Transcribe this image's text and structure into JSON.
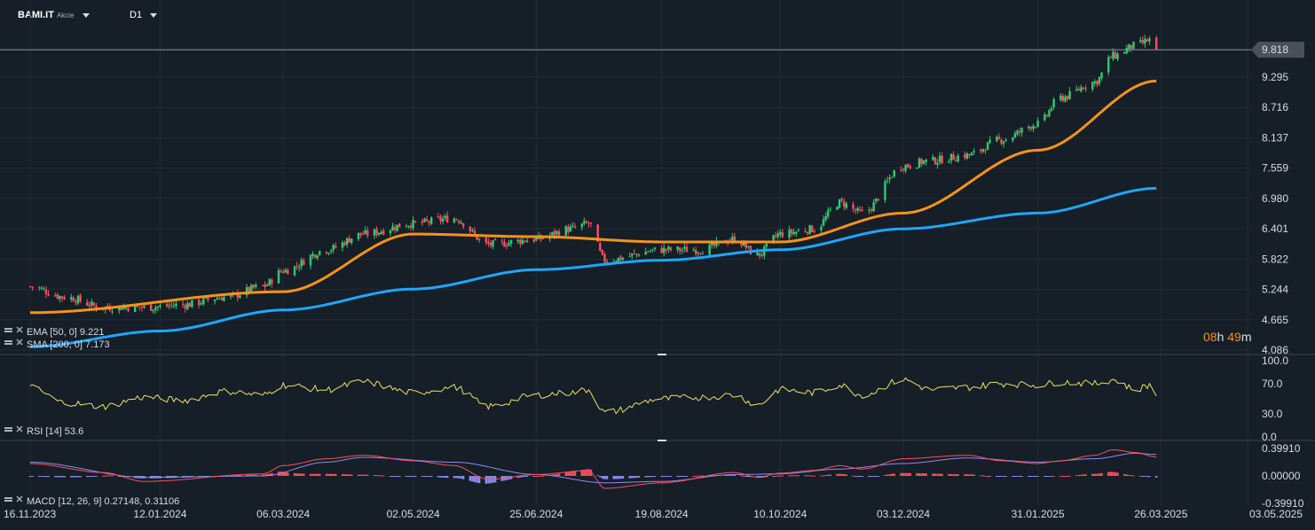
{
  "header": {
    "symbol": "BAMI.IT",
    "type": "Akcie",
    "timeframe": "D1"
  },
  "countdown": {
    "hours": "08",
    "h": "h",
    "minutes": "49",
    "m": "m"
  },
  "indicators": {
    "ema": "EMA [50, 0] 9.221",
    "sma": "SMA [200, 0] 7.173",
    "rsi": "RSI [14] 53.6",
    "macd": "MACD [12, 26, 9] 0.27148, 0.31106"
  },
  "chart_data": [
    {
      "type": "candlestick",
      "name": "price",
      "price_axis_labels": [
        "9.295",
        "8.716",
        "8.137",
        "7.559",
        "6.980",
        "6.401",
        "5.822",
        "5.244",
        "4.665",
        "4.086"
      ],
      "last_price": "9.818",
      "colors": {
        "up": "#2ecc71",
        "down": "#ff4d5e",
        "ema": "#f7931a",
        "sma": "#1ea7ff",
        "price_tag": "#4a5058"
      },
      "x_labels": [
        "16.11.2023",
        "12.01.2024",
        "06.03.2024",
        "02.05.2024",
        "25.06.2024",
        "19.08.2024",
        "10.10.2024",
        "03.12.2024",
        "31.01.2025",
        "26.03.2025",
        "03.05.2025"
      ],
      "close_anchors": [
        [
          "16.11.2023",
          5.3
        ],
        [
          "01.12.2023",
          5.1
        ],
        [
          "18.12.2023",
          4.9
        ],
        [
          "05.01.2024",
          4.9
        ],
        [
          "22.01.2024",
          4.95
        ],
        [
          "10.02.2024",
          5.1
        ],
        [
          "26.02.2024",
          5.3
        ],
        [
          "06.03.2024",
          5.6
        ],
        [
          "25.03.2024",
          6.0
        ],
        [
          "10.04.2024",
          6.3
        ],
        [
          "02.05.2024",
          6.5
        ],
        [
          "20.05.2024",
          6.6
        ],
        [
          "04.06.2024",
          6.1
        ],
        [
          "25.06.2024",
          6.2
        ],
        [
          "10.07.2024",
          6.4
        ],
        [
          "18.07.2024",
          6.5
        ],
        [
          "25.07.2024",
          5.8
        ],
        [
          "19.08.2024",
          6.0
        ],
        [
          "05.09.2024",
          6.0
        ],
        [
          "20.09.2024",
          6.2
        ],
        [
          "30.09.2024",
          5.9
        ],
        [
          "10.10.2024",
          6.3
        ],
        [
          "25.10.2024",
          6.4
        ],
        [
          "05.11.2024",
          6.9
        ],
        [
          "15.11.2024",
          6.7
        ],
        [
          "03.12.2024",
          7.6
        ],
        [
          "15.12.2024",
          7.7
        ],
        [
          "31.12.2024",
          7.8
        ],
        [
          "15.01.2025",
          8.1
        ],
        [
          "31.01.2025",
          8.4
        ],
        [
          "10.02.2025",
          8.9
        ],
        [
          "25.02.2025",
          9.2
        ],
        [
          "05.03.2025",
          9.7
        ],
        [
          "15.03.2025",
          9.9
        ],
        [
          "21.03.2025",
          10.0
        ],
        [
          "24.03.2025",
          9.818
        ]
      ],
      "ema_anchors": [
        [
          "16.11.2023",
          4.8
        ],
        [
          "06.03.2024",
          5.2
        ],
        [
          "02.05.2024",
          6.3
        ],
        [
          "25.06.2024",
          6.25
        ],
        [
          "19.08.2024",
          6.15
        ],
        [
          "10.10.2024",
          6.15
        ],
        [
          "03.12.2024",
          6.7
        ],
        [
          "31.01.2025",
          7.9
        ],
        [
          "24.03.2025",
          9.221
        ]
      ],
      "sma_anchors": [
        [
          "16.11.2023",
          4.15
        ],
        [
          "12.01.2024",
          4.45
        ],
        [
          "06.03.2024",
          4.85
        ],
        [
          "02.05.2024",
          5.25
        ],
        [
          "25.06.2024",
          5.62
        ],
        [
          "19.08.2024",
          5.8
        ],
        [
          "10.10.2024",
          6.0
        ],
        [
          "03.12.2024",
          6.4
        ],
        [
          "31.01.2025",
          6.7
        ],
        [
          "24.03.2025",
          7.173
        ]
      ]
    },
    {
      "type": "line",
      "name": "RSI",
      "axis_labels": [
        "100.0",
        "70.0",
        "30.0",
        "0.0"
      ],
      "ylim": [
        0,
        100
      ],
      "color": "#e8e26c",
      "anchors": [
        [
          "16.11.2023",
          65
        ],
        [
          "01.12.2023",
          45
        ],
        [
          "18.12.2023",
          40
        ],
        [
          "05.01.2024",
          52
        ],
        [
          "22.01.2024",
          48
        ],
        [
          "10.02.2024",
          60
        ],
        [
          "26.02.2024",
          55
        ],
        [
          "06.03.2024",
          68
        ],
        [
          "25.03.2024",
          62
        ],
        [
          "10.04.2024",
          72
        ],
        [
          "02.05.2024",
          58
        ],
        [
          "20.05.2024",
          65
        ],
        [
          "04.06.2024",
          40
        ],
        [
          "25.06.2024",
          55
        ],
        [
          "10.07.2024",
          58
        ],
        [
          "18.07.2024",
          62
        ],
        [
          "25.07.2024",
          32
        ],
        [
          "19.08.2024",
          50
        ],
        [
          "05.09.2024",
          52
        ],
        [
          "20.09.2024",
          55
        ],
        [
          "30.09.2024",
          42
        ],
        [
          "10.10.2024",
          62
        ],
        [
          "25.10.2024",
          58
        ],
        [
          "05.11.2024",
          68
        ],
        [
          "15.11.2024",
          55
        ],
        [
          "03.12.2024",
          75
        ],
        [
          "15.12.2024",
          62
        ],
        [
          "31.12.2024",
          65
        ],
        [
          "15.01.2025",
          70
        ],
        [
          "31.01.2025",
          68
        ],
        [
          "10.02.2025",
          72
        ],
        [
          "25.02.2025",
          70
        ],
        [
          "05.03.2025",
          75
        ],
        [
          "15.03.2025",
          62
        ],
        [
          "21.03.2025",
          68
        ],
        [
          "24.03.2025",
          53.6
        ]
      ]
    },
    {
      "type": "histogram+lines",
      "name": "MACD",
      "axis_labels": [
        "0.39910",
        "0.00000",
        "-0.39910"
      ],
      "ylim": [
        -0.3991,
        0.3991
      ],
      "colors": {
        "macd": "#ff4d5e",
        "signal": "#8b8ff0",
        "hist_up": "#ff4d5e",
        "hist_down": "#8b8ff0"
      },
      "macd_anchors": [
        [
          "16.11.2023",
          0.18
        ],
        [
          "18.12.2023",
          0.05
        ],
        [
          "05.01.2024",
          -0.08
        ],
        [
          "26.02.2024",
          0.03
        ],
        [
          "06.03.2024",
          0.15
        ],
        [
          "25.03.2024",
          0.25
        ],
        [
          "10.04.2024",
          0.3
        ],
        [
          "02.05.2024",
          0.22
        ],
        [
          "20.05.2024",
          0.15
        ],
        [
          "04.06.2024",
          -0.05
        ],
        [
          "25.06.2024",
          0.02
        ],
        [
          "18.07.2024",
          0.08
        ],
        [
          "25.07.2024",
          -0.18
        ],
        [
          "19.08.2024",
          -0.1
        ],
        [
          "20.09.2024",
          0.05
        ],
        [
          "30.09.2024",
          -0.02
        ],
        [
          "10.10.2024",
          0.04
        ],
        [
          "25.10.2024",
          0.08
        ],
        [
          "05.11.2024",
          0.15
        ],
        [
          "15.11.2024",
          0.1
        ],
        [
          "03.12.2024",
          0.25
        ],
        [
          "31.12.2024",
          0.3
        ],
        [
          "15.01.2025",
          0.22
        ],
        [
          "31.01.2025",
          0.18
        ],
        [
          "10.02.2025",
          0.22
        ],
        [
          "25.02.2025",
          0.3
        ],
        [
          "05.03.2025",
          0.38
        ],
        [
          "15.03.2025",
          0.34
        ],
        [
          "24.03.2025",
          0.27148
        ]
      ],
      "signal_anchors": [
        [
          "16.11.2023",
          0.2
        ],
        [
          "05.01.2024",
          -0.02
        ],
        [
          "26.02.2024",
          0.0
        ],
        [
          "25.03.2024",
          0.2
        ],
        [
          "10.04.2024",
          0.27
        ],
        [
          "20.05.2024",
          0.2
        ],
        [
          "25.06.2024",
          0.02
        ],
        [
          "25.07.2024",
          -0.1
        ],
        [
          "19.08.2024",
          -0.08
        ],
        [
          "20.09.2024",
          0.02
        ],
        [
          "10.10.2024",
          0.03
        ],
        [
          "05.11.2024",
          0.1
        ],
        [
          "03.12.2024",
          0.18
        ],
        [
          "31.12.2024",
          0.26
        ],
        [
          "31.01.2025",
          0.2
        ],
        [
          "25.02.2025",
          0.25
        ],
        [
          "15.03.2025",
          0.33
        ],
        [
          "24.03.2025",
          0.31106
        ]
      ]
    }
  ]
}
